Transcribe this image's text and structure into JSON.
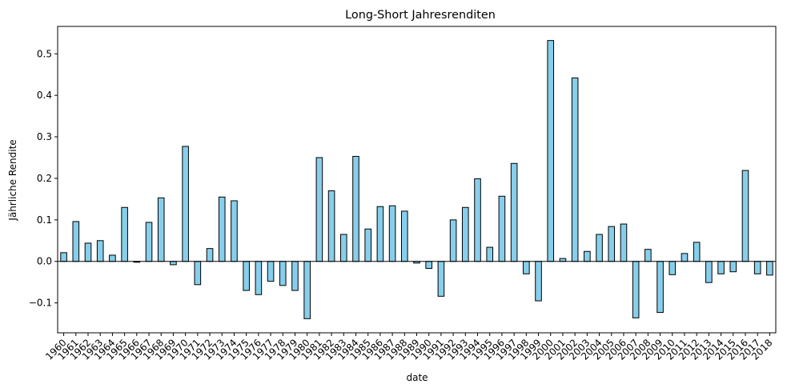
{
  "chart_data": {
    "type": "bar",
    "title": "Long-Short Jahresrenditen",
    "xlabel": "date",
    "ylabel": "Jährliche Rendite",
    "ylim": [
      -0.172,
      0.566
    ],
    "yticks": [
      -0.1,
      0.0,
      0.1,
      0.2,
      0.3,
      0.4,
      0.5
    ],
    "ytick_labels": [
      "−0.1",
      "0.0",
      "0.1",
      "0.2",
      "0.3",
      "0.4",
      "0.5"
    ],
    "bar_color": "#87ceeb",
    "edge_color": "#000000",
    "grid": false,
    "legend": "none",
    "categories": [
      "1960",
      "1961",
      "1962",
      "1963",
      "1964",
      "1965",
      "1966",
      "1967",
      "1968",
      "1969",
      "1970",
      "1971",
      "1972",
      "1973",
      "1974",
      "1975",
      "1976",
      "1977",
      "1978",
      "1979",
      "1980",
      "1981",
      "1982",
      "1983",
      "1984",
      "1985",
      "1986",
      "1987",
      "1988",
      "1989",
      "1990",
      "1991",
      "1992",
      "1993",
      "1994",
      "1995",
      "1996",
      "1997",
      "1998",
      "1999",
      "2000",
      "2001",
      "2002",
      "2003",
      "2004",
      "2005",
      "2006",
      "2007",
      "2008",
      "2009",
      "2010",
      "2011",
      "2012",
      "2013",
      "2014",
      "2015",
      "2016",
      "2017",
      "2018"
    ],
    "values": [
      0.021,
      0.096,
      0.044,
      0.05,
      0.015,
      0.13,
      -0.002,
      0.094,
      0.153,
      -0.008,
      0.277,
      -0.056,
      0.031,
      0.155,
      0.146,
      -0.07,
      -0.08,
      -0.048,
      -0.058,
      -0.07,
      -0.138,
      0.25,
      0.17,
      0.065,
      0.253,
      0.078,
      0.132,
      0.134,
      0.121,
      -0.004,
      -0.017,
      -0.084,
      0.1,
      0.13,
      0.199,
      0.034,
      0.157,
      0.236,
      -0.03,
      -0.095,
      0.532,
      0.007,
      0.442,
      0.024,
      0.065,
      0.084,
      0.09,
      -0.136,
      0.029,
      -0.123,
      -0.032,
      0.019,
      0.046,
      -0.051,
      -0.03,
      -0.025,
      0.219,
      -0.03,
      -0.033
    ]
  }
}
